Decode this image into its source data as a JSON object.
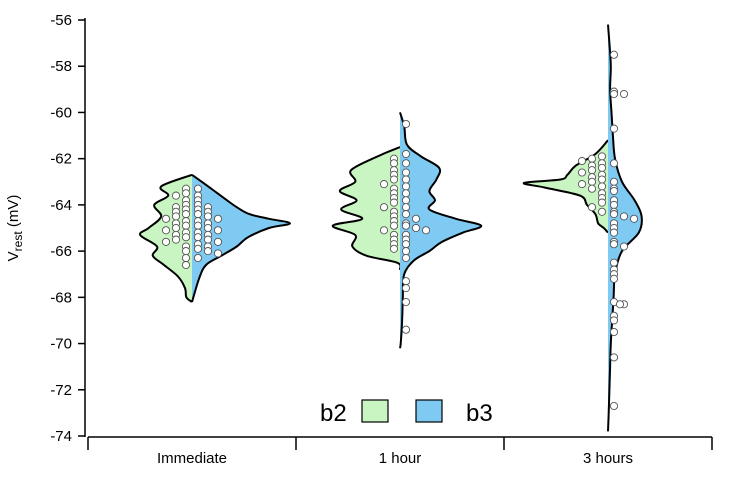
{
  "chart_data": {
    "type": "violin",
    "ylabel": {
      "main": "V",
      "sub": "rest",
      "unit": " (mV)"
    },
    "ylim": [
      -74,
      -56
    ],
    "yticks": [
      "-56",
      "-58",
      "-60",
      "-62",
      "-64",
      "-66",
      "-68",
      "-70",
      "-72",
      "-74"
    ],
    "categories": [
      "Immediate",
      "1 hour",
      "3 hours"
    ],
    "legend": {
      "placement": "bottom-center",
      "items": [
        {
          "label": "b2",
          "color": "#c9f5c2"
        },
        {
          "label": "b3",
          "color": "#7fcaf2"
        }
      ]
    },
    "groups": [
      {
        "category": "Immediate",
        "b2": {
          "profile": [
            [
              -62.7,
              0
            ],
            [
              -63.2,
              2.2
            ],
            [
              -63.6,
              1.7
            ],
            [
              -64.0,
              2.7
            ],
            [
              -64.5,
              2.2
            ],
            [
              -65.0,
              3.1
            ],
            [
              -65.3,
              3.7
            ],
            [
              -65.8,
              2.5
            ],
            [
              -66.2,
              2.8
            ],
            [
              -66.6,
              2.0
            ],
            [
              -67.1,
              1.0
            ],
            [
              -67.6,
              0.5
            ],
            [
              -68.0,
              0.4
            ],
            [
              -68.2,
              0
            ]
          ],
          "points": [
            -63.3,
            -63.5,
            -63.6,
            -63.8,
            -64.0,
            -64.1,
            -64.2,
            -64.3,
            -64.4,
            -64.5,
            -64.6,
            -64.7,
            -64.8,
            -64.9,
            -65.0,
            -65.1,
            -65.2,
            -65.3,
            -65.4,
            -65.5,
            -65.6,
            -65.8,
            -66.0,
            -66.3,
            -66.6
          ]
        },
        "b3": {
          "profile": [
            [
              -62.7,
              0
            ],
            [
              -63.0,
              0.7
            ],
            [
              -63.4,
              1.6
            ],
            [
              -63.8,
              2.5
            ],
            [
              -64.1,
              3.2
            ],
            [
              -64.4,
              4.1
            ],
            [
              -64.6,
              5.5
            ],
            [
              -64.8,
              7.0
            ],
            [
              -65.0,
              5.5
            ],
            [
              -65.4,
              4.0
            ],
            [
              -65.8,
              3.2
            ],
            [
              -66.2,
              2.1
            ],
            [
              -66.6,
              1.0
            ],
            [
              -67.2,
              0.5
            ],
            [
              -68.2,
              0
            ]
          ],
          "points": [
            -63.3,
            -63.6,
            -63.8,
            -64.0,
            -64.1,
            -64.2,
            -64.3,
            -64.4,
            -64.5,
            -64.6,
            -64.7,
            -64.8,
            -64.9,
            -65.0,
            -65.1,
            -65.2,
            -65.3,
            -65.4,
            -65.5,
            -65.6,
            -65.7,
            -65.8,
            -65.9,
            -66.0,
            -66.1,
            -66.3
          ]
        }
      },
      {
        "category": "1 hour",
        "b2": {
          "profile": [
            [
              -61.5,
              0
            ],
            [
              -61.9,
              1.6
            ],
            [
              -62.5,
              3.5
            ],
            [
              -63.0,
              3.2
            ],
            [
              -63.4,
              4.3
            ],
            [
              -63.8,
              3.1
            ],
            [
              -64.2,
              4.2
            ],
            [
              -64.6,
              2.7
            ],
            [
              -64.9,
              4.8
            ],
            [
              -65.3,
              3.2
            ],
            [
              -65.8,
              3.4
            ],
            [
              -66.2,
              2.4
            ],
            [
              -66.5,
              0.2
            ],
            [
              -66.8,
              0
            ]
          ],
          "points": [
            -62.0,
            -62.2,
            -62.5,
            -62.7,
            -62.9,
            -63.1,
            -63.3,
            -63.5,
            -63.7,
            -63.9,
            -64.1,
            -64.3,
            -64.5,
            -64.7,
            -64.9,
            -65.1,
            -65.3,
            -65.5,
            -65.7,
            -65.9
          ]
        },
        "b3": {
          "profile": [
            [
              -60.0,
              0
            ],
            [
              -60.6,
              0.3
            ],
            [
              -61.4,
              0.5
            ],
            [
              -61.9,
              1.5
            ],
            [
              -62.4,
              2.8
            ],
            [
              -62.9,
              2.6
            ],
            [
              -63.4,
              2.1
            ],
            [
              -63.8,
              2.5
            ],
            [
              -64.2,
              2.1
            ],
            [
              -64.6,
              4.0
            ],
            [
              -64.9,
              5.8
            ],
            [
              -65.2,
              4.5
            ],
            [
              -65.6,
              3.0
            ],
            [
              -66.0,
              2.1
            ],
            [
              -66.4,
              1.0
            ],
            [
              -67.0,
              0.3
            ],
            [
              -68.0,
              0.2
            ],
            [
              -69.0,
              0.15
            ],
            [
              -70.0,
              0.05
            ],
            [
              -70.2,
              0
            ]
          ],
          "points": [
            -60.5,
            -61.8,
            -62.2,
            -62.6,
            -62.9,
            -63.2,
            -63.5,
            -63.8,
            -64.1,
            -64.4,
            -64.6,
            -64.8,
            -64.9,
            -65.0,
            -65.1,
            -65.3,
            -65.5,
            -65.7,
            -66.0,
            -66.3,
            -67.3,
            -67.6,
            -68.2,
            -69.4
          ]
        }
      },
      {
        "category": "3 hours",
        "b2": {
          "profile": [
            [
              -61.2,
              0
            ],
            [
              -61.8,
              0.9
            ],
            [
              -62.3,
              2.3
            ],
            [
              -62.7,
              2.9
            ],
            [
              -62.9,
              3.4
            ],
            [
              -63.05,
              6.0
            ],
            [
              -63.25,
              4.5
            ],
            [
              -63.6,
              2.0
            ],
            [
              -64.0,
              1.5
            ],
            [
              -64.4,
              0.9
            ],
            [
              -64.8,
              0.7
            ],
            [
              -65.0,
              0.3
            ],
            [
              -65.2,
              0
            ]
          ],
          "points": [
            -61.9,
            -62.0,
            -62.1,
            -62.2,
            -62.3,
            -62.4,
            -62.5,
            -62.6,
            -62.7,
            -62.8,
            -62.9,
            -63.0,
            -63.1,
            -63.2,
            -63.3,
            -63.5,
            -63.7,
            -63.9,
            -64.1,
            -64.3
          ]
        },
        "b3": {
          "profile": [
            [
              -56.2,
              0
            ],
            [
              -57.0,
              0.1
            ],
            [
              -58.0,
              0.2
            ],
            [
              -59.0,
              0.15
            ],
            [
              -60.0,
              0.25
            ],
            [
              -61.0,
              0.35
            ],
            [
              -62.0,
              0.5
            ],
            [
              -63.0,
              1.0
            ],
            [
              -63.8,
              1.9
            ],
            [
              -64.5,
              2.4
            ],
            [
              -65.2,
              2.2
            ],
            [
              -66.0,
              1.0
            ],
            [
              -67.0,
              0.5
            ],
            [
              -68.0,
              0.4
            ],
            [
              -69.0,
              0.3
            ],
            [
              -70.0,
              0.2
            ],
            [
              -71.0,
              0.15
            ],
            [
              -72.0,
              0.1
            ],
            [
              -73.0,
              0.05
            ],
            [
              -73.8,
              0
            ]
          ],
          "points": [
            -57.5,
            -59.1,
            -59.2,
            -59.2,
            -60.7,
            -62.2,
            -63.0,
            -63.3,
            -63.4,
            -63.8,
            -64.0,
            -64.3,
            -64.4,
            -64.5,
            -64.6,
            -64.8,
            -65.0,
            -65.2,
            -65.6,
            -65.7,
            -65.8,
            -66.5,
            -66.8,
            -67.0,
            -67.2,
            -68.2,
            -68.3,
            -68.3,
            -68.8,
            -69.0,
            -69.5,
            -70.6,
            -72.7
          ]
        }
      }
    ]
  }
}
